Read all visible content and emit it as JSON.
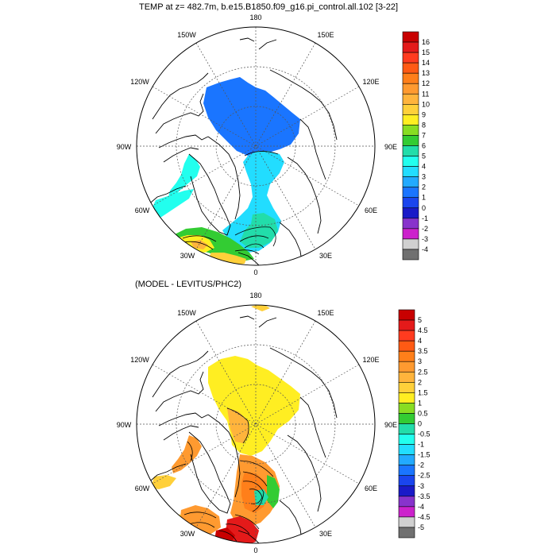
{
  "panels": [
    {
      "title": "TEMP at z= 482.7m, b.e15.B1850.f09_g16.pi_control.all.102 [3-22]",
      "lon_labels": [
        "180",
        "150E",
        "120E",
        "90E",
        "60E",
        "30E",
        "0",
        "30W",
        "60W",
        "90W",
        "120W",
        "150W"
      ],
      "colorbar_labels": [
        "16",
        "15",
        "14",
        "13",
        "12",
        "11",
        "10",
        "9",
        "8",
        "7",
        "6",
        "5",
        "4",
        "3",
        "2",
        "1",
        "0",
        "-1",
        "-2",
        "-3",
        "-4"
      ],
      "colorbar_colors": [
        "#c80000",
        "#e41a1a",
        "#ff3b1f",
        "#ff5a14",
        "#ff7f1a",
        "#ff9a30",
        "#ffb43c",
        "#ffd03a",
        "#ffee22",
        "#88dd22",
        "#33cc33",
        "#22ddaa",
        "#22ffee",
        "#22ddff",
        "#22aaff",
        "#1a75ff",
        "#1a45ee",
        "#1a1ac8",
        "#8833cc",
        "#cc22cc",
        "#d0d0d0",
        "#707070"
      ]
    },
    {
      "title": "(MODEL - LEVITUS/PHC2)",
      "lon_labels": [
        "180",
        "150E",
        "120E",
        "90E",
        "60E",
        "30E",
        "0",
        "30W",
        "60W",
        "90W",
        "120W",
        "150W"
      ],
      "colorbar_labels": [
        "5",
        "4.5",
        "4",
        "3.5",
        "3",
        "2.5",
        "2",
        "1.5",
        "1",
        "0.5",
        "0",
        "-0.5",
        "-1",
        "-1.5",
        "-2",
        "-2.5",
        "-3",
        "-3.5",
        "-4",
        "-4.5",
        "-5"
      ],
      "colorbar_colors": [
        "#c80000",
        "#e41a1a",
        "#ff3b1f",
        "#ff5a14",
        "#ff7f1a",
        "#ff9a30",
        "#ffb43c",
        "#ffd03a",
        "#ffee22",
        "#88dd22",
        "#33cc33",
        "#22ddaa",
        "#22ffee",
        "#22ddff",
        "#22aaff",
        "#1a75ff",
        "#1a45ee",
        "#1a1ac8",
        "#8833cc",
        "#cc22cc",
        "#d0d0d0",
        "#707070"
      ]
    }
  ]
}
